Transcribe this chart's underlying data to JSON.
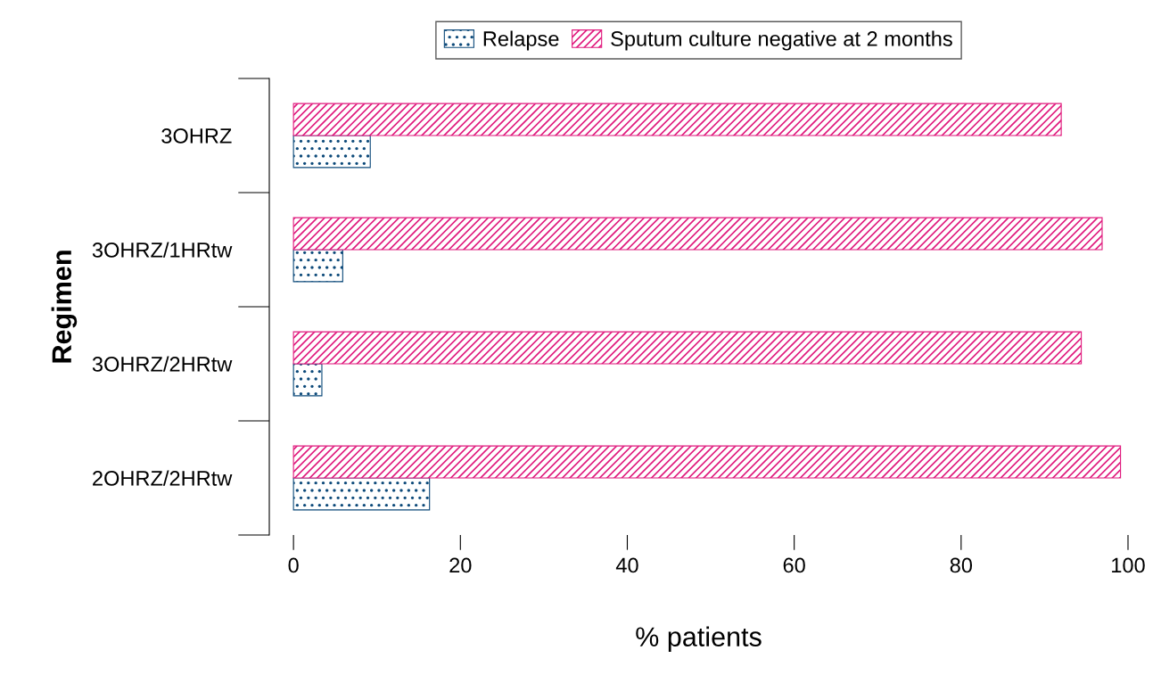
{
  "chart_data": {
    "type": "bar",
    "orientation": "horizontal",
    "xlabel": "% patients",
    "ylabel": "Regimen",
    "categories": [
      "3OHRZ",
      "3OHRZ/1HRtw",
      "3OHRZ/2HRtw",
      "2OHRZ/2HRtw"
    ],
    "series": [
      {
        "name": "Relapse",
        "color": "#0d4a7a",
        "values": [
          9.2,
          5.9,
          3.4,
          16.3
        ]
      },
      {
        "name": "Sputum culture negative at 2 months",
        "color": "#e0197d",
        "values": [
          92.0,
          96.9,
          94.4,
          99.1
        ]
      }
    ],
    "xlim": [
      -2.9,
      100
    ],
    "xticks": [
      0,
      20,
      40,
      60,
      80,
      100
    ],
    "grid": false,
    "legend": "top"
  }
}
